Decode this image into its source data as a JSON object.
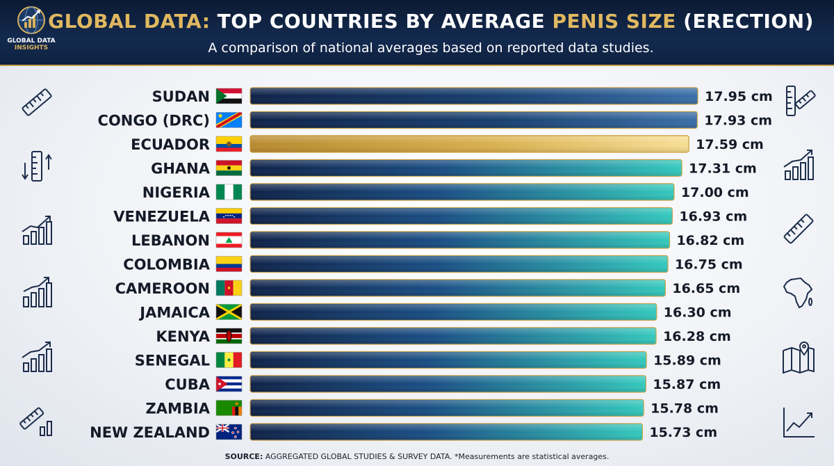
{
  "header": {
    "logo_line1": "GLOBAL DATA",
    "logo_line2": "INSIGHTS",
    "title_part1": "GLOBAL DATA:",
    "title_part2": " TOP COUNTRIES BY AVERAGE ",
    "title_part3": "PENIS SIZE",
    "title_part4": " (ERECTION)",
    "subtitle": "A comparison of national averages based on reported data studies."
  },
  "footer": {
    "source_label": "SOURCE:",
    "source_text": " AGGREGATED GLOBAL STUDIES & SURVEY DATA. *Measurements are statistical averages."
  },
  "side_icons": {
    "left": [
      "ruler-icon",
      "measure-arrows-icon",
      "bar-growth-icon",
      "bar-growth-icon",
      "bar-growth-icon",
      "ruler-bars-icon"
    ],
    "right": [
      "ruler-icon",
      "bar-growth-icon",
      "ruler-icon",
      "africa-map-icon",
      "map-pin-icon",
      "line-chart-icon"
    ]
  },
  "colors": {
    "bar_dark": "#112a52",
    "bar_teal": "#2ec7bd",
    "bar_blue": "#3a6fa8",
    "highlight_gold": "#d3a645",
    "highlight_light": "#f7dc8f",
    "header_bg": "#0c1a33",
    "accent_gold": "#e0b860"
  },
  "chart_data": {
    "type": "bar",
    "orientation": "horizontal",
    "unit": "cm",
    "highlight": "ECUADOR",
    "categories": [
      "SUDAN",
      "CONGO (DRC)",
      "ECUADOR",
      "GHANA",
      "NIGERIA",
      "VENEZUELA",
      "LEBANON",
      "COLOMBIA",
      "CAMEROON",
      "JAMAICA",
      "KENYA",
      "SENEGAL",
      "CUBA",
      "ZAMBIA",
      "NEW ZEALAND"
    ],
    "values": [
      17.95,
      17.93,
      17.59,
      17.31,
      17.0,
      16.93,
      16.82,
      16.75,
      16.65,
      16.3,
      16.28,
      15.89,
      15.87,
      15.78,
      15.73
    ],
    "value_labels": [
      "17.95 cm",
      "17.93 cm",
      "17.59 cm",
      "17.31 cm",
      "17.00 cm",
      "16.93 cm",
      "16.82 cm",
      "16.75 cm",
      "16.65 cm",
      "16.30 cm",
      "16.28 cm",
      "15.89 cm",
      "15.87 cm",
      "15.78 cm",
      "15.73 cm"
    ],
    "flags": [
      "sudan-flag-icon",
      "congo-drc-flag-icon",
      "ecuador-flag-icon",
      "ghana-flag-icon",
      "nigeria-flag-icon",
      "venezuela-flag-icon",
      "lebanon-flag-icon",
      "colombia-flag-icon",
      "cameroon-flag-icon",
      "jamaica-flag-icon",
      "kenya-flag-icon",
      "senegal-flag-icon",
      "cuba-flag-icon",
      "zambia-flag-icon",
      "new-zealand-flag-icon"
    ],
    "title": "GLOBAL DATA: TOP COUNTRIES BY AVERAGE PENIS SIZE (ERECTION)",
    "xlabel": "",
    "ylabel": "",
    "grid": false,
    "legend": "none"
  }
}
